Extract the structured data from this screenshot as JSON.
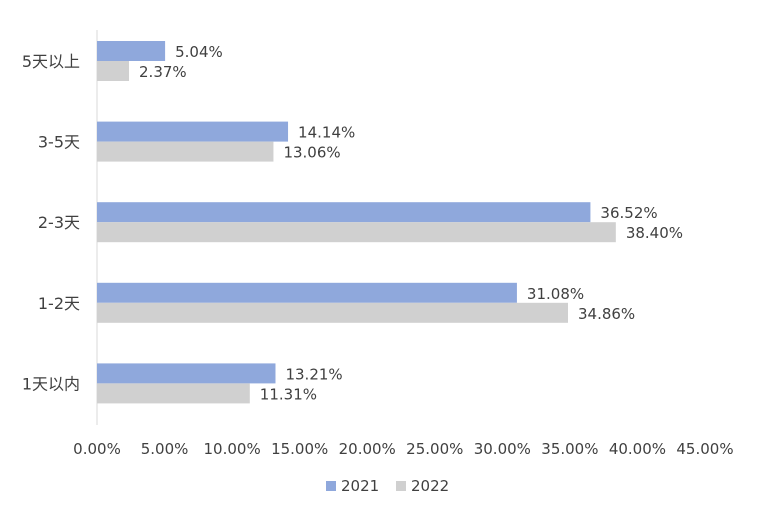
{
  "chart_data": {
    "type": "bar",
    "orientation": "horizontal",
    "categories": [
      "5天以上",
      "3-5天",
      "2-3天",
      "1-2天",
      "1天以内"
    ],
    "series": [
      {
        "name": "2021",
        "values": [
          5.04,
          14.14,
          36.52,
          31.08,
          13.21
        ],
        "labels": [
          "5.04%",
          "14.14%",
          "36.52%",
          "31.08%",
          "13.21%"
        ],
        "color": "#8FA8DC"
      },
      {
        "name": "2022",
        "values": [
          2.37,
          13.06,
          38.4,
          34.86,
          11.31
        ],
        "labels": [
          "2.37%",
          "13.06%",
          "38.40%",
          "34.86%",
          "11.31%"
        ],
        "color": "#D0D0D0"
      }
    ],
    "xlim": [
      0,
      45
    ],
    "xticks": [
      0,
      5,
      10,
      15,
      20,
      25,
      30,
      35,
      40,
      45
    ],
    "xtick_labels": [
      "0.00%",
      "5.00%",
      "10.00%",
      "15.00%",
      "20.00%",
      "25.00%",
      "30.00%",
      "35.00%",
      "40.00%",
      "45.00%"
    ],
    "legend_position": "bottom-center",
    "grid": false,
    "title": "",
    "xlabel": "",
    "ylabel": ""
  }
}
